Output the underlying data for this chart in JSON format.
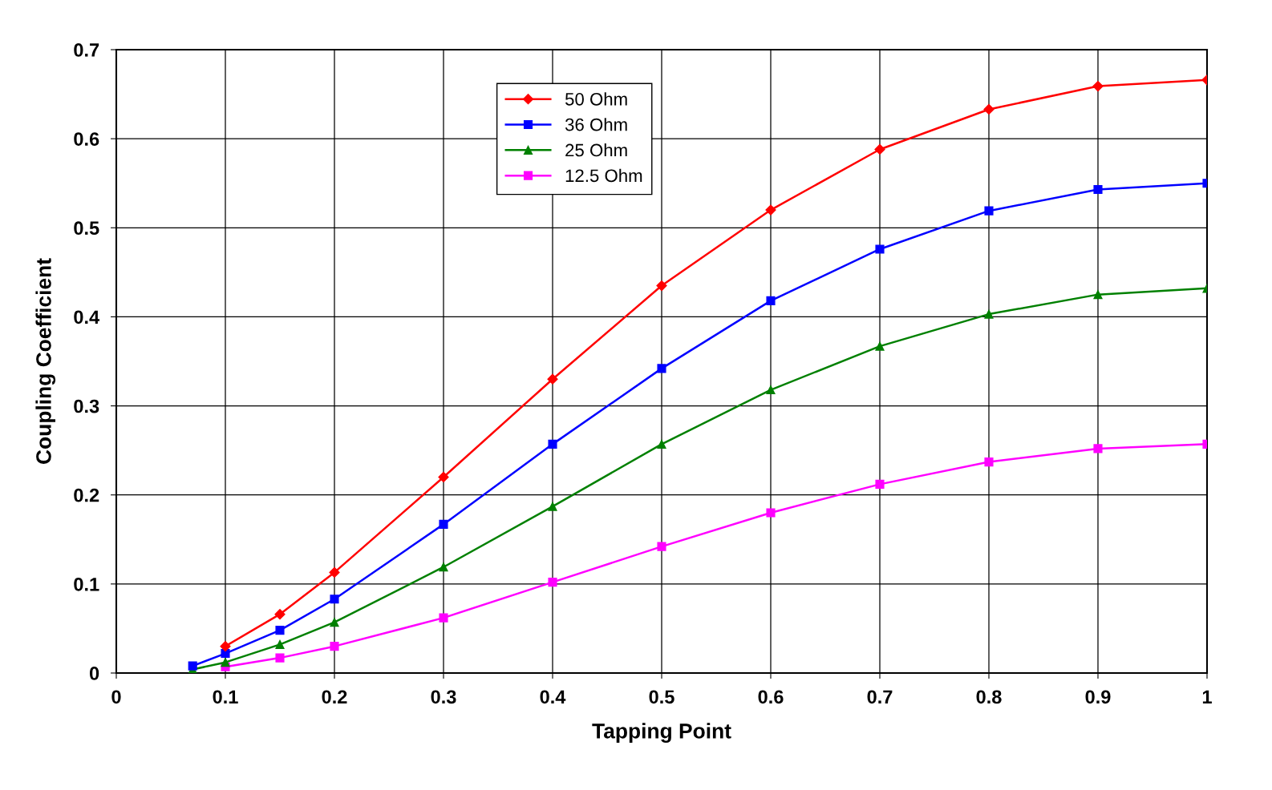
{
  "chart_data": {
    "type": "line",
    "xlabel": "Tapping Point",
    "ylabel": "Coupling Coefficient",
    "x": [
      0.07,
      0.1,
      0.15,
      0.2,
      0.3,
      0.4,
      0.5,
      0.6,
      0.7,
      0.8,
      0.9,
      1
    ],
    "series": [
      {
        "name": "50 Ohm",
        "color": "#ff0000",
        "marker": "diamond",
        "values": [
          null,
          0.03,
          0.066,
          0.113,
          0.22,
          0.33,
          0.435,
          0.52,
          0.588,
          0.633,
          0.659,
          0.666
        ]
      },
      {
        "name": "36 Ohm",
        "color": "#0000ff",
        "marker": "square",
        "values": [
          0.008,
          0.022,
          0.048,
          0.083,
          0.167,
          0.257,
          0.342,
          0.418,
          0.476,
          0.519,
          0.543,
          0.55
        ]
      },
      {
        "name": "25 Ohm",
        "color": "#008000",
        "marker": "triangle",
        "values": [
          0.004,
          0.012,
          0.032,
          0.057,
          0.119,
          0.187,
          0.257,
          0.318,
          0.367,
          0.403,
          0.425,
          0.432
        ]
      },
      {
        "name": "12.5 Ohm",
        "color": "#ff00ff",
        "marker": "square",
        "values": [
          null,
          0.007,
          0.017,
          0.03,
          0.062,
          0.102,
          0.142,
          0.18,
          0.212,
          0.237,
          0.252,
          0.257
        ]
      }
    ],
    "xlim": [
      0,
      1
    ],
    "xticks": [
      0,
      0.1,
      0.2,
      0.3,
      0.4,
      0.5,
      0.6,
      0.7,
      0.8,
      0.9,
      1
    ],
    "ylim": [
      0,
      0.7
    ],
    "yticks": [
      0,
      0.1,
      0.2,
      0.3,
      0.4,
      0.5,
      0.6,
      0.7
    ],
    "grid": true,
    "legend": "top",
    "line_style": "solid"
  }
}
